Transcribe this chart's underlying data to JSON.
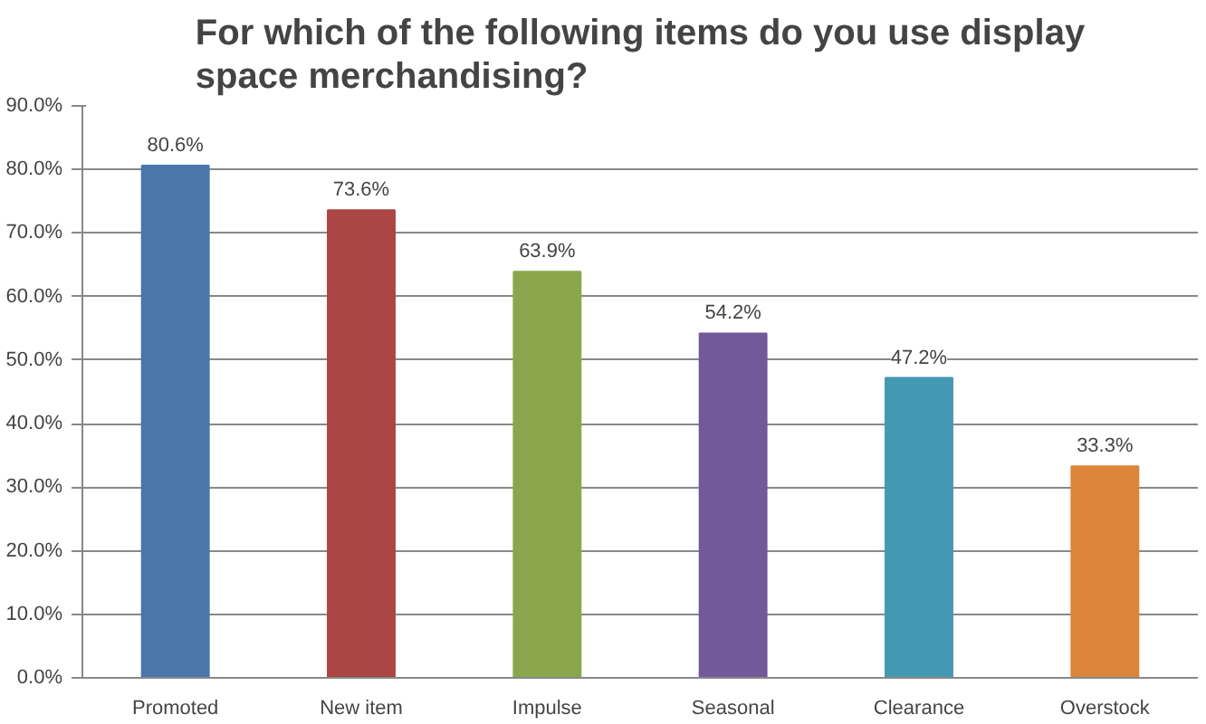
{
  "chart_data": {
    "type": "bar",
    "title": "For which of the following items do you use display\nspace merchandising?",
    "categories": [
      "Promoted",
      "New item",
      "Impulse",
      "Seasonal",
      "Clearance",
      "Overstock"
    ],
    "values": [
      80.6,
      73.6,
      63.9,
      54.2,
      47.2,
      33.3
    ],
    "colors": [
      "#4a76aa",
      "#aa4644",
      "#8aa64c",
      "#71599a",
      "#4499b2",
      "#dc853a"
    ],
    "value_labels": [
      "80.6%",
      "73.6%",
      "63.9%",
      "54.2%",
      "47.2%",
      "33.3%"
    ],
    "ylim": [
      0,
      90
    ],
    "yticks": [
      {
        "value": 0,
        "label": "0.0%"
      },
      {
        "value": 10,
        "label": "10.0%"
      },
      {
        "value": 20,
        "label": "20.0%"
      },
      {
        "value": 30,
        "label": "30.0%"
      },
      {
        "value": 40,
        "label": "40.0%"
      },
      {
        "value": 50,
        "label": "50.0%"
      },
      {
        "value": 60,
        "label": "60.0%"
      },
      {
        "value": 70,
        "label": "70.0%"
      },
      {
        "value": 80,
        "label": "80.0%"
      },
      {
        "value": 90,
        "label": "90.0%"
      }
    ],
    "grid": "y"
  }
}
